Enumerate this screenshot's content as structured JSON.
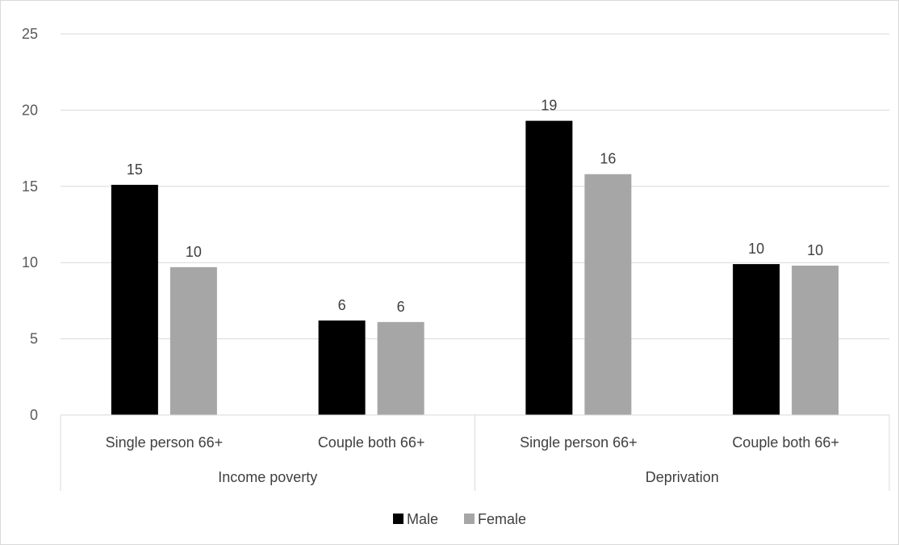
{
  "chart_data": {
    "type": "bar",
    "groups": [
      {
        "label": "Income poverty",
        "categories": [
          "Single person 66+",
          "Couple both 66+"
        ]
      },
      {
        "label": "Deprivation",
        "categories": [
          "Single person 66+",
          "Couple both 66+"
        ]
      }
    ],
    "categories": [
      "Single person 66+",
      "Couple both 66+",
      "Single person 66+",
      "Couple both 66+"
    ],
    "series": [
      {
        "name": "Male",
        "color": "#000000",
        "values": [
          15.1,
          6.2,
          19.3,
          9.9
        ],
        "labels": [
          "15",
          "6",
          "19",
          "10"
        ]
      },
      {
        "name": "Female",
        "color": "#a6a6a6",
        "values": [
          9.7,
          6.1,
          15.8,
          9.8
        ],
        "labels": [
          "10",
          "6",
          "16",
          "10"
        ]
      }
    ],
    "yticks": [
      "0",
      "5",
      "10",
      "15",
      "20",
      "25"
    ],
    "ylim": [
      0,
      25
    ],
    "grid": true,
    "legend": "bottom"
  }
}
